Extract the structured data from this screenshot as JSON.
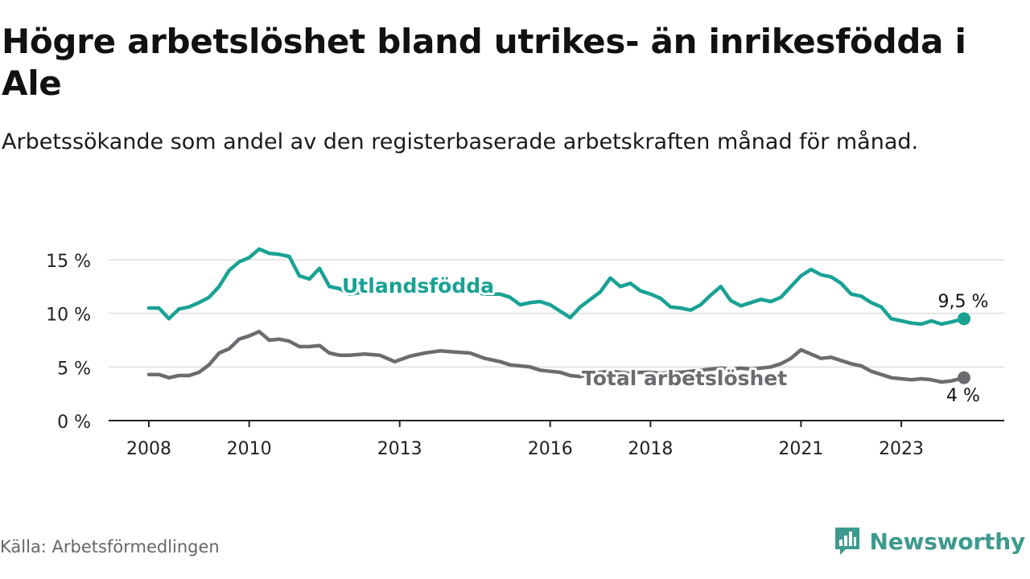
{
  "title": "Högre arbetslöshet bland utrikes- än inrikesfödda i Ale",
  "subtitle": "Arbetssökande som andel av den registerbaserade arbetskraften månad för månad.",
  "source": "Källa: Arbetsförmedlingen",
  "brand": "Newsworthy",
  "colors": {
    "foreign": "#18a294",
    "total": "#6c6b70",
    "grid": "#dddddd",
    "axis": "#222222",
    "brand": "#3d9a8e"
  },
  "chart_data": {
    "type": "line",
    "title": "Högre arbetslöshet bland utrikes- än inrikesfödda i Ale",
    "subtitle": "Arbetssökande som andel av den registerbaserade arbetskraften månad för månad.",
    "xlabel": "",
    "ylabel": "",
    "x_range": [
      2008.0,
      2024.25
    ],
    "ylim": [
      0,
      15
    ],
    "y_ticks": [
      {
        "value": 0,
        "label": "0 %"
      },
      {
        "value": 5,
        "label": "5 %"
      },
      {
        "value": 10,
        "label": "10 %"
      },
      {
        "value": 15,
        "label": "15 %"
      }
    ],
    "x_ticks": [
      {
        "value": 2008,
        "label": "2008"
      },
      {
        "value": 2010,
        "label": "2010"
      },
      {
        "value": 2013,
        "label": "2013"
      },
      {
        "value": 2016,
        "label": "2016"
      },
      {
        "value": 2018,
        "label": "2018"
      },
      {
        "value": 2021,
        "label": "2021"
      },
      {
        "value": 2023,
        "label": "2023"
      }
    ],
    "grid": true,
    "legend": "inline labels",
    "series": [
      {
        "name": "Utlandsfödda",
        "color": "#18a294",
        "end_label": "9,5 %",
        "points": [
          [
            2008.0,
            10.5
          ],
          [
            2008.2,
            10.5
          ],
          [
            2008.4,
            9.5
          ],
          [
            2008.6,
            10.4
          ],
          [
            2008.8,
            10.6
          ],
          [
            2009.0,
            11.0
          ],
          [
            2009.2,
            11.5
          ],
          [
            2009.4,
            12.5
          ],
          [
            2009.6,
            14.0
          ],
          [
            2009.8,
            14.8
          ],
          [
            2010.0,
            15.2
          ],
          [
            2010.2,
            16.0
          ],
          [
            2010.4,
            15.6
          ],
          [
            2010.6,
            15.5
          ],
          [
            2010.8,
            15.3
          ],
          [
            2011.0,
            13.5
          ],
          [
            2011.2,
            13.2
          ],
          [
            2011.4,
            14.2
          ],
          [
            2011.6,
            12.5
          ],
          [
            2011.8,
            12.3
          ],
          [
            2012.0,
            11.8
          ],
          [
            2012.3,
            12.0
          ],
          [
            2012.6,
            12.3
          ],
          [
            2012.9,
            12.0
          ],
          [
            2013.2,
            12.3
          ],
          [
            2013.5,
            12.1
          ],
          [
            2013.8,
            12.4
          ],
          [
            2014.1,
            12.0
          ],
          [
            2014.4,
            12.0
          ],
          [
            2014.7,
            11.8
          ],
          [
            2015.0,
            11.8
          ],
          [
            2015.2,
            11.5
          ],
          [
            2015.4,
            10.8
          ],
          [
            2015.6,
            11.0
          ],
          [
            2015.8,
            11.1
          ],
          [
            2016.0,
            10.8
          ],
          [
            2016.2,
            10.2
          ],
          [
            2016.4,
            9.6
          ],
          [
            2016.6,
            10.6
          ],
          [
            2016.8,
            11.3
          ],
          [
            2017.0,
            12.0
          ],
          [
            2017.2,
            13.3
          ],
          [
            2017.4,
            12.5
          ],
          [
            2017.6,
            12.8
          ],
          [
            2017.8,
            12.1
          ],
          [
            2018.0,
            11.8
          ],
          [
            2018.2,
            11.4
          ],
          [
            2018.4,
            10.6
          ],
          [
            2018.6,
            10.5
          ],
          [
            2018.8,
            10.3
          ],
          [
            2019.0,
            10.8
          ],
          [
            2019.2,
            11.7
          ],
          [
            2019.4,
            12.5
          ],
          [
            2019.6,
            11.2
          ],
          [
            2019.8,
            10.7
          ],
          [
            2020.0,
            11.0
          ],
          [
            2020.2,
            11.3
          ],
          [
            2020.4,
            11.1
          ],
          [
            2020.6,
            11.5
          ],
          [
            2020.8,
            12.5
          ],
          [
            2021.0,
            13.5
          ],
          [
            2021.2,
            14.1
          ],
          [
            2021.4,
            13.6
          ],
          [
            2021.6,
            13.4
          ],
          [
            2021.8,
            12.8
          ],
          [
            2022.0,
            11.8
          ],
          [
            2022.2,
            11.6
          ],
          [
            2022.4,
            11.0
          ],
          [
            2022.6,
            10.6
          ],
          [
            2022.8,
            9.5
          ],
          [
            2023.0,
            9.3
          ],
          [
            2023.2,
            9.1
          ],
          [
            2023.4,
            9.0
          ],
          [
            2023.6,
            9.3
          ],
          [
            2023.8,
            9.0
          ],
          [
            2024.0,
            9.2
          ],
          [
            2024.25,
            9.5
          ]
        ]
      },
      {
        "name": "Total arbetslöshet",
        "color": "#6c6b70",
        "end_label": "4 %",
        "points": [
          [
            2008.0,
            4.3
          ],
          [
            2008.2,
            4.3
          ],
          [
            2008.4,
            4.0
          ],
          [
            2008.6,
            4.2
          ],
          [
            2008.8,
            4.2
          ],
          [
            2009.0,
            4.5
          ],
          [
            2009.2,
            5.2
          ],
          [
            2009.4,
            6.3
          ],
          [
            2009.6,
            6.7
          ],
          [
            2009.8,
            7.6
          ],
          [
            2010.0,
            7.9
          ],
          [
            2010.2,
            8.3
          ],
          [
            2010.4,
            7.5
          ],
          [
            2010.6,
            7.6
          ],
          [
            2010.8,
            7.4
          ],
          [
            2011.0,
            6.9
          ],
          [
            2011.2,
            6.9
          ],
          [
            2011.4,
            7.0
          ],
          [
            2011.6,
            6.3
          ],
          [
            2011.8,
            6.1
          ],
          [
            2012.0,
            6.1
          ],
          [
            2012.3,
            6.2
          ],
          [
            2012.6,
            6.1
          ],
          [
            2012.9,
            5.5
          ],
          [
            2013.2,
            6.0
          ],
          [
            2013.5,
            6.3
          ],
          [
            2013.8,
            6.5
          ],
          [
            2014.1,
            6.4
          ],
          [
            2014.4,
            6.3
          ],
          [
            2014.7,
            5.8
          ],
          [
            2015.0,
            5.5
          ],
          [
            2015.2,
            5.2
          ],
          [
            2015.4,
            5.1
          ],
          [
            2015.6,
            5.0
          ],
          [
            2015.8,
            4.7
          ],
          [
            2016.0,
            4.6
          ],
          [
            2016.2,
            4.5
          ],
          [
            2016.4,
            4.2
          ],
          [
            2016.6,
            4.1
          ],
          [
            2016.8,
            4.4
          ],
          [
            2017.0,
            4.5
          ],
          [
            2017.2,
            4.6
          ],
          [
            2017.4,
            4.5
          ],
          [
            2017.6,
            4.4
          ],
          [
            2017.8,
            4.5
          ],
          [
            2018.0,
            4.5
          ],
          [
            2018.2,
            4.4
          ],
          [
            2018.4,
            4.5
          ],
          [
            2018.6,
            4.5
          ],
          [
            2018.8,
            4.6
          ],
          [
            2019.0,
            4.7
          ],
          [
            2019.2,
            4.8
          ],
          [
            2019.4,
            4.9
          ],
          [
            2019.6,
            4.8
          ],
          [
            2019.8,
            4.9
          ],
          [
            2020.0,
            4.8
          ],
          [
            2020.2,
            4.9
          ],
          [
            2020.4,
            5.0
          ],
          [
            2020.6,
            5.3
          ],
          [
            2020.8,
            5.8
          ],
          [
            2021.0,
            6.6
          ],
          [
            2021.2,
            6.2
          ],
          [
            2021.4,
            5.8
          ],
          [
            2021.6,
            5.9
          ],
          [
            2021.8,
            5.6
          ],
          [
            2022.0,
            5.3
          ],
          [
            2022.2,
            5.1
          ],
          [
            2022.4,
            4.6
          ],
          [
            2022.6,
            4.3
          ],
          [
            2022.8,
            4.0
          ],
          [
            2023.0,
            3.9
          ],
          [
            2023.2,
            3.8
          ],
          [
            2023.4,
            3.9
          ],
          [
            2023.6,
            3.8
          ],
          [
            2023.8,
            3.6
          ],
          [
            2024.0,
            3.7
          ],
          [
            2024.25,
            4.0
          ]
        ]
      }
    ]
  }
}
